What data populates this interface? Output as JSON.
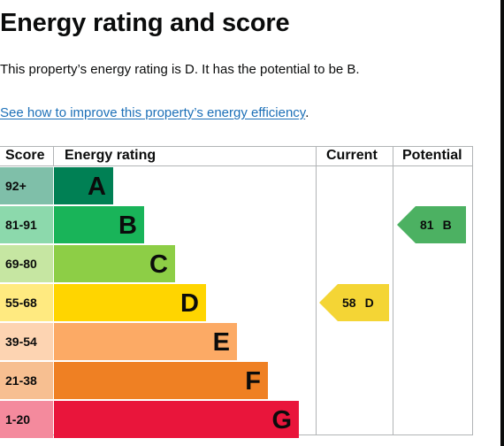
{
  "page": {
    "title": "Energy rating and score",
    "summary": "This property’s energy rating is D. It has the potential to be B.",
    "link_text": "See how to improve this property’s energy efficiency",
    "link_suffix": "."
  },
  "table": {
    "headers": {
      "score": "Score",
      "energy_rating": "Energy rating",
      "current": "Current",
      "potential": "Potential"
    },
    "bands": [
      {
        "score": "92+",
        "letter": "A",
        "color": "#008054",
        "tint": "#7fbfa9"
      },
      {
        "score": "81-91",
        "letter": "B",
        "color": "#19b459",
        "tint": "#8cd9ac"
      },
      {
        "score": "69-80",
        "letter": "C",
        "color": "#8dce46",
        "tint": "#c6e6a2"
      },
      {
        "score": "55-68",
        "letter": "D",
        "color": "#ffd500",
        "tint": "#ffea80"
      },
      {
        "score": "39-54",
        "letter": "E",
        "color": "#fcaa65",
        "tint": "#fdd4b2"
      },
      {
        "score": "21-38",
        "letter": "F",
        "color": "#ef8023",
        "tint": "#f7bf91"
      },
      {
        "score": "1-20",
        "letter": "G",
        "color": "#e9153b",
        "tint": "#f48a9d"
      }
    ],
    "current": {
      "value": "58",
      "letter": "D",
      "color": "#f4d535"
    },
    "potential": {
      "value": "81",
      "letter": "B",
      "color": "#4cb162"
    }
  },
  "colors": {
    "link": "#1d70b8",
    "text": "#0b0c0c",
    "border": "#b1b4b6"
  }
}
